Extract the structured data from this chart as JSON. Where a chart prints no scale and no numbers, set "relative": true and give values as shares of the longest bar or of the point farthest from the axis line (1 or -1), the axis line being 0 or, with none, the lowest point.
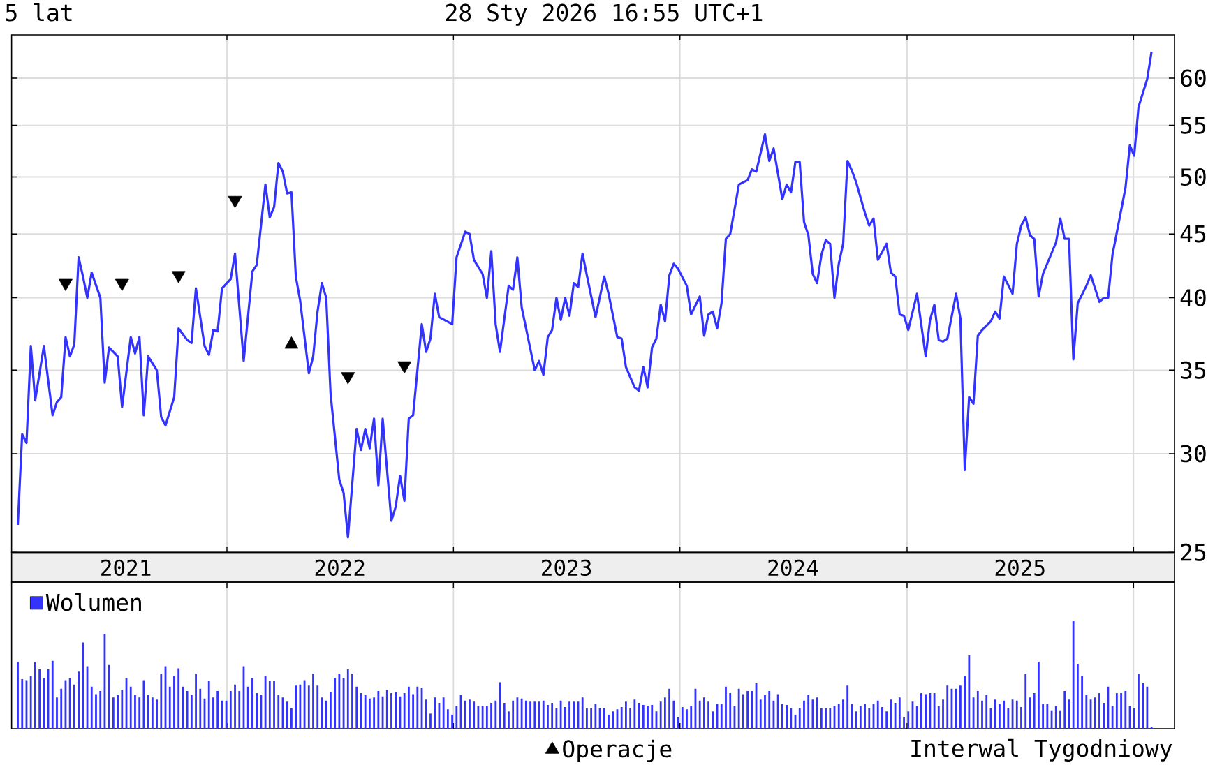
{
  "chart_data": [
    {
      "type": "line",
      "title": "5 lat",
      "subtitle": "28 Sty 2026 16:55 UTC+1",
      "annotations": [
        "Interwal Tygodniowy"
      ],
      "series": [
        {
          "type": "line",
          "color": "#3333ff",
          "x": [
            "2021-01-29",
            "2021-02-05",
            "2021-02-12",
            "2021-02-19",
            "2021-02-26",
            "2021-03-12",
            "2021-03-26",
            "2021-04-02",
            "2021-04-09",
            "2021-04-16",
            "2021-04-23",
            "2021-04-30",
            "2021-05-07",
            "2021-05-14",
            "2021-05-21",
            "2021-05-28",
            "2021-06-11",
            "2021-06-18",
            "2021-06-25",
            "2021-07-09",
            "2021-07-16",
            "2021-07-30",
            "2021-08-06",
            "2021-08-13",
            "2021-08-20",
            "2021-08-27",
            "2021-09-10",
            "2021-09-17",
            "2021-09-24",
            "2021-10-08",
            "2021-10-15",
            "2021-10-29",
            "2021-11-05",
            "2021-11-12",
            "2021-11-26",
            "2021-12-03",
            "2021-12-10",
            "2021-12-17",
            "2021-12-24",
            "2022-01-07",
            "2022-01-14",
            "2022-01-28",
            "2022-02-11",
            "2022-02-18",
            "2022-03-04",
            "2022-03-11",
            "2022-03-18",
            "2022-03-25",
            "2022-04-01",
            "2022-04-08",
            "2022-04-15",
            "2022-04-22",
            "2022-04-29",
            "2022-05-13",
            "2022-05-20",
            "2022-05-27",
            "2022-06-03",
            "2022-06-10",
            "2022-06-17",
            "2022-07-01",
            "2022-07-08",
            "2022-07-15",
            "2022-07-22",
            "2022-07-29",
            "2022-08-05",
            "2022-08-12",
            "2022-08-19",
            "2022-08-26",
            "2022-09-02",
            "2022-09-09",
            "2022-09-23",
            "2022-09-30",
            "2022-10-07",
            "2022-10-14",
            "2022-10-21",
            "2022-10-28",
            "2022-11-11",
            "2022-11-18",
            "2022-11-25",
            "2022-12-02",
            "2022-12-09",
            "2022-12-30",
            "2023-01-06",
            "2023-01-20",
            "2023-01-27",
            "2023-02-03",
            "2023-02-17",
            "2023-02-24",
            "2023-03-03",
            "2023-03-10",
            "2023-03-17",
            "2023-03-31",
            "2023-04-07",
            "2023-04-14",
            "2023-04-21",
            "2023-05-12",
            "2023-05-19",
            "2023-05-26",
            "2023-06-02",
            "2023-06-09",
            "2023-06-16",
            "2023-06-23",
            "2023-06-30",
            "2023-07-07",
            "2023-07-14",
            "2023-07-21",
            "2023-07-28",
            "2023-08-04",
            "2023-08-18",
            "2023-09-01",
            "2023-09-08",
            "2023-09-22",
            "2023-09-29",
            "2023-10-06",
            "2023-10-20",
            "2023-10-27",
            "2023-11-03",
            "2023-11-10",
            "2023-11-17",
            "2023-11-24",
            "2023-12-01",
            "2023-12-08",
            "2023-12-15",
            "2023-12-22",
            "2023-12-29",
            "2024-01-12",
            "2024-01-19",
            "2024-02-02",
            "2024-02-09",
            "2024-02-16",
            "2024-02-23",
            "2024-03-01",
            "2024-03-08",
            "2024-03-15",
            "2024-03-22",
            "2024-04-05",
            "2024-04-19",
            "2024-04-26",
            "2024-05-03",
            "2024-05-17",
            "2024-05-24",
            "2024-05-31",
            "2024-06-14",
            "2024-06-21",
            "2024-06-28",
            "2024-07-05",
            "2024-07-12",
            "2024-07-19",
            "2024-07-26",
            "2024-08-02",
            "2024-08-09",
            "2024-08-16",
            "2024-08-23",
            "2024-08-30",
            "2024-09-06",
            "2024-09-13",
            "2024-09-20",
            "2024-09-27",
            "2024-10-04",
            "2024-10-11",
            "2024-10-25",
            "2024-11-01",
            "2024-11-08",
            "2024-11-15",
            "2024-11-29",
            "2024-12-06",
            "2024-12-13",
            "2024-12-20",
            "2024-12-27",
            "2025-01-03",
            "2025-01-17",
            "2025-01-31",
            "2025-02-07",
            "2025-02-14",
            "2025-02-21",
            "2025-02-28",
            "2025-03-07",
            "2025-03-21",
            "2025-03-28",
            "2025-04-04",
            "2025-04-11",
            "2025-04-18",
            "2025-04-25",
            "2025-05-02",
            "2025-05-16",
            "2025-05-23",
            "2025-05-30",
            "2025-06-06",
            "2025-06-20",
            "2025-06-27",
            "2025-07-04",
            "2025-07-11",
            "2025-07-18",
            "2025-07-25",
            "2025-08-01",
            "2025-08-08",
            "2025-08-29",
            "2025-09-05",
            "2025-09-12",
            "2025-09-19",
            "2025-09-26",
            "2025-10-03",
            "2025-10-17",
            "2025-10-24",
            "2025-11-07",
            "2025-11-14",
            "2025-11-21",
            "2025-11-28",
            "2025-12-19",
            "2025-12-26",
            "2026-01-02",
            "2026-01-09",
            "2026-01-23",
            "2026-01-30"
          ],
          "values": [
            26.3,
            31.1,
            30.6,
            36.6,
            33.1,
            36.6,
            32.2,
            33.0,
            33.3,
            37.2,
            35.9,
            36.7,
            43.1,
            41.6,
            40.0,
            41.9,
            40.0,
            34.2,
            36.5,
            35.9,
            32.7,
            37.2,
            36.1,
            37.2,
            32.2,
            35.9,
            35.0,
            32.1,
            31.6,
            33.3,
            37.8,
            37.0,
            36.8,
            40.7,
            36.6,
            36.0,
            37.7,
            37.6,
            40.7,
            41.4,
            43.4,
            35.6,
            42.0,
            42.5,
            49.3,
            46.4,
            47.3,
            51.3,
            50.5,
            48.5,
            48.6,
            41.6,
            39.8,
            34.8,
            35.9,
            39.0,
            41.1,
            40.0,
            33.5,
            28.6,
            27.9,
            25.7,
            28.4,
            31.4,
            30.2,
            31.4,
            30.3,
            32.0,
            28.3,
            32.0,
            26.5,
            27.2,
            28.8,
            27.5,
            32.0,
            32.2,
            38.1,
            36.2,
            37.1,
            40.3,
            38.6,
            38.1,
            43.1,
            45.2,
            45.0,
            42.9,
            41.8,
            40.0,
            43.6,
            38.1,
            36.2,
            40.9,
            40.6,
            43.1,
            39.3,
            35.0,
            35.6,
            34.7,
            37.2,
            37.7,
            40.0,
            38.4,
            40.0,
            38.7,
            41.1,
            40.8,
            43.4,
            41.7,
            38.6,
            41.6,
            40.3,
            37.2,
            37.1,
            35.2,
            33.9,
            33.7,
            35.2,
            33.9,
            36.5,
            37.1,
            39.5,
            38.3,
            41.7,
            42.6,
            42.2,
            40.9,
            38.8,
            40.1,
            37.3,
            38.8,
            39.0,
            37.8,
            39.6,
            44.6,
            45.0,
            49.3,
            49.7,
            50.7,
            50.5,
            54.1,
            51.5,
            52.7,
            48.0,
            49.3,
            48.6,
            51.4,
            51.4,
            46.0,
            44.9,
            41.8,
            41.1,
            43.3,
            44.5,
            44.2,
            40.0,
            42.6,
            44.2,
            51.5,
            50.6,
            49.5,
            46.8,
            45.7,
            46.3,
            42.9,
            44.2,
            41.9,
            41.6,
            38.8,
            38.7,
            37.7,
            40.3,
            35.9,
            38.4,
            39.5,
            37.0,
            36.9,
            37.1,
            40.3,
            38.5,
            29.1,
            33.3,
            32.9,
            37.3,
            37.7,
            38.3,
            39.0,
            38.5,
            41.6,
            40.3,
            44.2,
            45.7,
            46.4,
            44.9,
            44.6,
            40.1,
            41.8,
            44.3,
            46.3,
            44.6,
            44.6,
            35.7,
            39.6,
            40.9,
            41.7,
            39.7,
            40.0,
            40.0,
            43.3,
            49.0,
            53.0,
            52.0,
            56.9,
            59.9,
            63.0
          ]
        },
        {
          "type": "scatter",
          "name": "Operacje",
          "color": "#000000",
          "marker": "triangle",
          "x": [
            "2022-04-15"
          ],
          "values": [
            36.7
          ]
        },
        {
          "type": "scatter",
          "color": "#000000",
          "marker": "triangle",
          "x": [
            "2021-04-16",
            "2021-07-16",
            "2021-10-15",
            "2022-01-14",
            "2022-07-15",
            "2022-10-14"
          ],
          "values": [
            41.1,
            41.1,
            41.7,
            47.9,
            34.6,
            35.3
          ]
        }
      ],
      "xlim": [
        "2021-01-19",
        "2026-03-08"
      ],
      "xticks": [
        {
          "value": "2021-07-22",
          "label": "2021"
        },
        {
          "value": "2022-01-01",
          "label": null
        },
        {
          "value": "2022-07-02",
          "label": "2022"
        },
        {
          "value": "2023-01-01",
          "label": null
        },
        {
          "value": "2023-07-02",
          "label": "2023"
        },
        {
          "value": "2024-01-01",
          "label": null
        },
        {
          "value": "2024-07-01",
          "label": "2024"
        },
        {
          "value": "2025-01-01",
          "label": null
        },
        {
          "value": "2025-07-02",
          "label": "2025"
        },
        {
          "value": "2026-01-01",
          "label": null
        }
      ],
      "ylim": [
        25,
        65
      ],
      "yticks": [
        25,
        30,
        35,
        40,
        45,
        50,
        55,
        60
      ],
      "log": "y",
      "grid": true,
      "legend": "bottom"
    },
    {
      "type": "bar",
      "relative": true,
      "grid": "x",
      "legend": "top left",
      "tick_labels": false,
      "x": [
        "2021-01-29",
        "2021-02-05",
        "2021-02-12",
        "2021-02-19",
        "2021-02-26",
        "2021-03-05",
        "2021-03-12",
        "2021-03-19",
        "2021-03-26",
        "2021-04-02",
        "2021-04-09",
        "2021-04-16",
        "2021-04-23",
        "2021-04-30",
        "2021-05-07",
        "2021-05-14",
        "2021-05-21",
        "2021-05-28",
        "2021-06-04",
        "2021-06-11",
        "2021-06-18",
        "2021-06-25",
        "2021-07-02",
        "2021-07-09",
        "2021-07-16",
        "2021-07-23",
        "2021-07-30",
        "2021-08-06",
        "2021-08-13",
        "2021-08-20",
        "2021-08-27",
        "2021-09-03",
        "2021-09-10",
        "2021-09-17",
        "2021-09-24",
        "2021-10-01",
        "2021-10-08",
        "2021-10-15",
        "2021-10-22",
        "2021-10-29",
        "2021-11-05",
        "2021-11-12",
        "2021-11-19",
        "2021-11-26",
        "2021-12-03",
        "2021-12-10",
        "2021-12-17",
        "2021-12-24",
        "2021-12-31",
        "2022-01-07",
        "2022-01-14",
        "2022-01-21",
        "2022-01-28",
        "2022-02-04",
        "2022-02-11",
        "2022-02-18",
        "2022-02-25",
        "2022-03-04",
        "2022-03-11",
        "2022-03-18",
        "2022-03-25",
        "2022-04-01",
        "2022-04-08",
        "2022-04-15",
        "2022-04-22",
        "2022-04-29",
        "2022-05-06",
        "2022-05-13",
        "2022-05-20",
        "2022-05-27",
        "2022-06-03",
        "2022-06-10",
        "2022-06-17",
        "2022-06-24",
        "2022-07-01",
        "2022-07-08",
        "2022-07-15",
        "2022-07-22",
        "2022-07-29",
        "2022-08-05",
        "2022-08-12",
        "2022-08-19",
        "2022-08-26",
        "2022-09-02",
        "2022-09-09",
        "2022-09-16",
        "2022-09-23",
        "2022-09-30",
        "2022-10-07",
        "2022-10-14",
        "2022-10-21",
        "2022-10-28",
        "2022-11-04",
        "2022-11-11",
        "2022-11-18",
        "2022-11-25",
        "2022-12-02",
        "2022-12-09",
        "2022-12-16",
        "2022-12-23",
        "2022-12-30",
        "2023-01-06",
        "2023-01-13",
        "2023-01-20",
        "2023-01-27",
        "2023-02-03",
        "2023-02-10",
        "2023-02-17",
        "2023-02-24",
        "2023-03-03",
        "2023-03-10",
        "2023-03-17",
        "2023-03-24",
        "2023-03-31",
        "2023-04-07",
        "2023-04-14",
        "2023-04-21",
        "2023-04-28",
        "2023-05-05",
        "2023-05-12",
        "2023-05-19",
        "2023-05-26",
        "2023-06-02",
        "2023-06-09",
        "2023-06-16",
        "2023-06-23",
        "2023-06-30",
        "2023-07-07",
        "2023-07-14",
        "2023-07-21",
        "2023-07-28",
        "2023-08-04",
        "2023-08-11",
        "2023-08-18",
        "2023-08-25",
        "2023-09-01",
        "2023-09-08",
        "2023-09-15",
        "2023-09-22",
        "2023-09-29",
        "2023-10-06",
        "2023-10-13",
        "2023-10-20",
        "2023-10-27",
        "2023-11-03",
        "2023-11-10",
        "2023-11-17",
        "2023-11-24",
        "2023-12-01",
        "2023-12-08",
        "2023-12-15",
        "2023-12-22",
        "2023-12-29",
        "2024-01-05",
        "2024-01-12",
        "2024-01-19",
        "2024-01-26",
        "2024-02-02",
        "2024-02-09",
        "2024-02-16",
        "2024-02-23",
        "2024-03-01",
        "2024-03-08",
        "2024-03-15",
        "2024-03-22",
        "2024-03-29",
        "2024-04-05",
        "2024-04-12",
        "2024-04-19",
        "2024-04-26",
        "2024-05-03",
        "2024-05-10",
        "2024-05-17",
        "2024-05-24",
        "2024-05-31",
        "2024-06-07",
        "2024-06-14",
        "2024-06-21",
        "2024-06-28",
        "2024-07-05",
        "2024-07-12",
        "2024-07-19",
        "2024-07-26",
        "2024-08-02",
        "2024-08-09",
        "2024-08-16",
        "2024-08-23",
        "2024-08-30",
        "2024-09-06",
        "2024-09-13",
        "2024-09-20",
        "2024-09-27",
        "2024-10-04",
        "2024-10-11",
        "2024-10-18",
        "2024-10-25",
        "2024-11-01",
        "2024-11-08",
        "2024-11-15",
        "2024-11-22",
        "2024-11-29",
        "2024-12-06",
        "2024-12-13",
        "2024-12-20",
        "2024-12-27",
        "2025-01-03",
        "2025-01-10",
        "2025-01-17",
        "2025-01-24",
        "2025-01-31",
        "2025-02-07",
        "2025-02-14",
        "2025-02-21",
        "2025-02-28",
        "2025-03-07",
        "2025-03-14",
        "2025-03-21",
        "2025-03-28",
        "2025-04-04",
        "2025-04-11",
        "2025-04-18",
        "2025-04-25",
        "2025-05-02",
        "2025-05-09",
        "2025-05-16",
        "2025-05-23",
        "2025-05-30",
        "2025-06-06",
        "2025-06-13",
        "2025-06-20",
        "2025-06-27",
        "2025-07-04",
        "2025-07-11",
        "2025-07-18",
        "2025-07-25",
        "2025-08-01",
        "2025-08-08",
        "2025-08-15",
        "2025-08-22",
        "2025-08-29",
        "2025-09-05",
        "2025-09-12",
        "2025-09-19",
        "2025-09-26",
        "2025-10-03",
        "2025-10-10",
        "2025-10-17",
        "2025-10-24",
        "2025-10-31",
        "2025-11-07",
        "2025-11-14",
        "2025-11-21",
        "2025-11-28",
        "2025-12-05",
        "2025-12-12",
        "2025-12-19",
        "2025-12-26",
        "2026-01-02",
        "2026-01-09",
        "2026-01-16",
        "2026-01-23",
        "2026-01-30"
      ],
      "series": [
        {
          "name": "Wolumen",
          "color": "#3333ff",
          "values": [
            0.62,
            0.46,
            0.45,
            0.49,
            0.62,
            0.55,
            0.47,
            0.55,
            0.63,
            0.29,
            0.37,
            0.45,
            0.47,
            0.41,
            0.53,
            0.8,
            0.58,
            0.39,
            0.32,
            0.35,
            0.88,
            0.59,
            0.29,
            0.31,
            0.36,
            0.47,
            0.39,
            0.31,
            0.29,
            0.45,
            0.31,
            0.29,
            0.27,
            0.51,
            0.58,
            0.39,
            0.49,
            0.56,
            0.39,
            0.35,
            0.31,
            0.51,
            0.37,
            0.28,
            0.44,
            0.29,
            0.35,
            0.26,
            0.26,
            0.35,
            0.41,
            0.35,
            0.58,
            0.39,
            0.47,
            0.33,
            0.31,
            0.49,
            0.44,
            0.44,
            0.31,
            0.29,
            0.25,
            0.19,
            0.4,
            0.41,
            0.45,
            0.4,
            0.51,
            0.4,
            0.29,
            0.26,
            0.34,
            0.47,
            0.51,
            0.47,
            0.55,
            0.51,
            0.39,
            0.33,
            0.31,
            0.28,
            0.29,
            0.35,
            0.3,
            0.36,
            0.33,
            0.34,
            0.3,
            0.33,
            0.39,
            0.32,
            0.39,
            0.38,
            0.27,
            0.14,
            0.29,
            0.24,
            0.29,
            0.18,
            0.13,
            0.21,
            0.31,
            0.26,
            0.27,
            0.25,
            0.21,
            0.21,
            0.21,
            0.24,
            0.26,
            0.43,
            0.24,
            0.16,
            0.26,
            0.29,
            0.28,
            0.26,
            0.25,
            0.25,
            0.25,
            0.26,
            0.22,
            0.24,
            0.19,
            0.26,
            0.2,
            0.25,
            0.25,
            0.25,
            0.29,
            0.19,
            0.19,
            0.23,
            0.19,
            0.19,
            0.13,
            0.16,
            0.18,
            0.2,
            0.25,
            0.19,
            0.27,
            0.24,
            0.22,
            0.21,
            0.22,
            0.16,
            0.25,
            0.29,
            0.37,
            0.26,
            0.11,
            0.2,
            0.18,
            0.21,
            0.37,
            0.26,
            0.29,
            0.25,
            0.16,
            0.23,
            0.23,
            0.39,
            0.33,
            0.21,
            0.37,
            0.32,
            0.35,
            0.35,
            0.42,
            0.27,
            0.31,
            0.35,
            0.26,
            0.32,
            0.23,
            0.22,
            0.19,
            0.13,
            0.19,
            0.26,
            0.31,
            0.27,
            0.29,
            0.19,
            0.19,
            0.19,
            0.21,
            0.23,
            0.27,
            0.4,
            0.23,
            0.16,
            0.21,
            0.23,
            0.19,
            0.23,
            0.26,
            0.2,
            0.16,
            0.27,
            0.24,
            0.29,
            0.11,
            0.16,
            0.25,
            0.21,
            0.33,
            0.32,
            0.33,
            0.33,
            0.21,
            0.27,
            0.4,
            0.37,
            0.37,
            0.4,
            0.49,
            0.68,
            0.29,
            0.35,
            0.26,
            0.31,
            0.19,
            0.27,
            0.23,
            0.26,
            0.19,
            0.27,
            0.26,
            0.2,
            0.51,
            0.29,
            0.33,
            0.62,
            0.23,
            0.23,
            0.17,
            0.21,
            0.17,
            0.35,
            0.27,
            1,
            0.6,
            0.49,
            0.31,
            0.27,
            0.29,
            0.33,
            0.24,
            0.39,
            0.21,
            0.33,
            0.33,
            0.35,
            0.21,
            0.19,
            0.51,
            0.42,
            0.39,
            0.02
          ]
        }
      ],
      "xlim": [
        "2021-01-19",
        "2026-03-08"
      ],
      "xticks": [
        {
          "value": "2022-01-01",
          "label": null
        },
        {
          "value": "2023-01-01",
          "label": null
        },
        {
          "value": "2024-01-01",
          "label": null
        },
        {
          "value": "2025-01-01",
          "label": null
        },
        {
          "value": "2026-01-01",
          "label": null
        }
      ]
    }
  ]
}
